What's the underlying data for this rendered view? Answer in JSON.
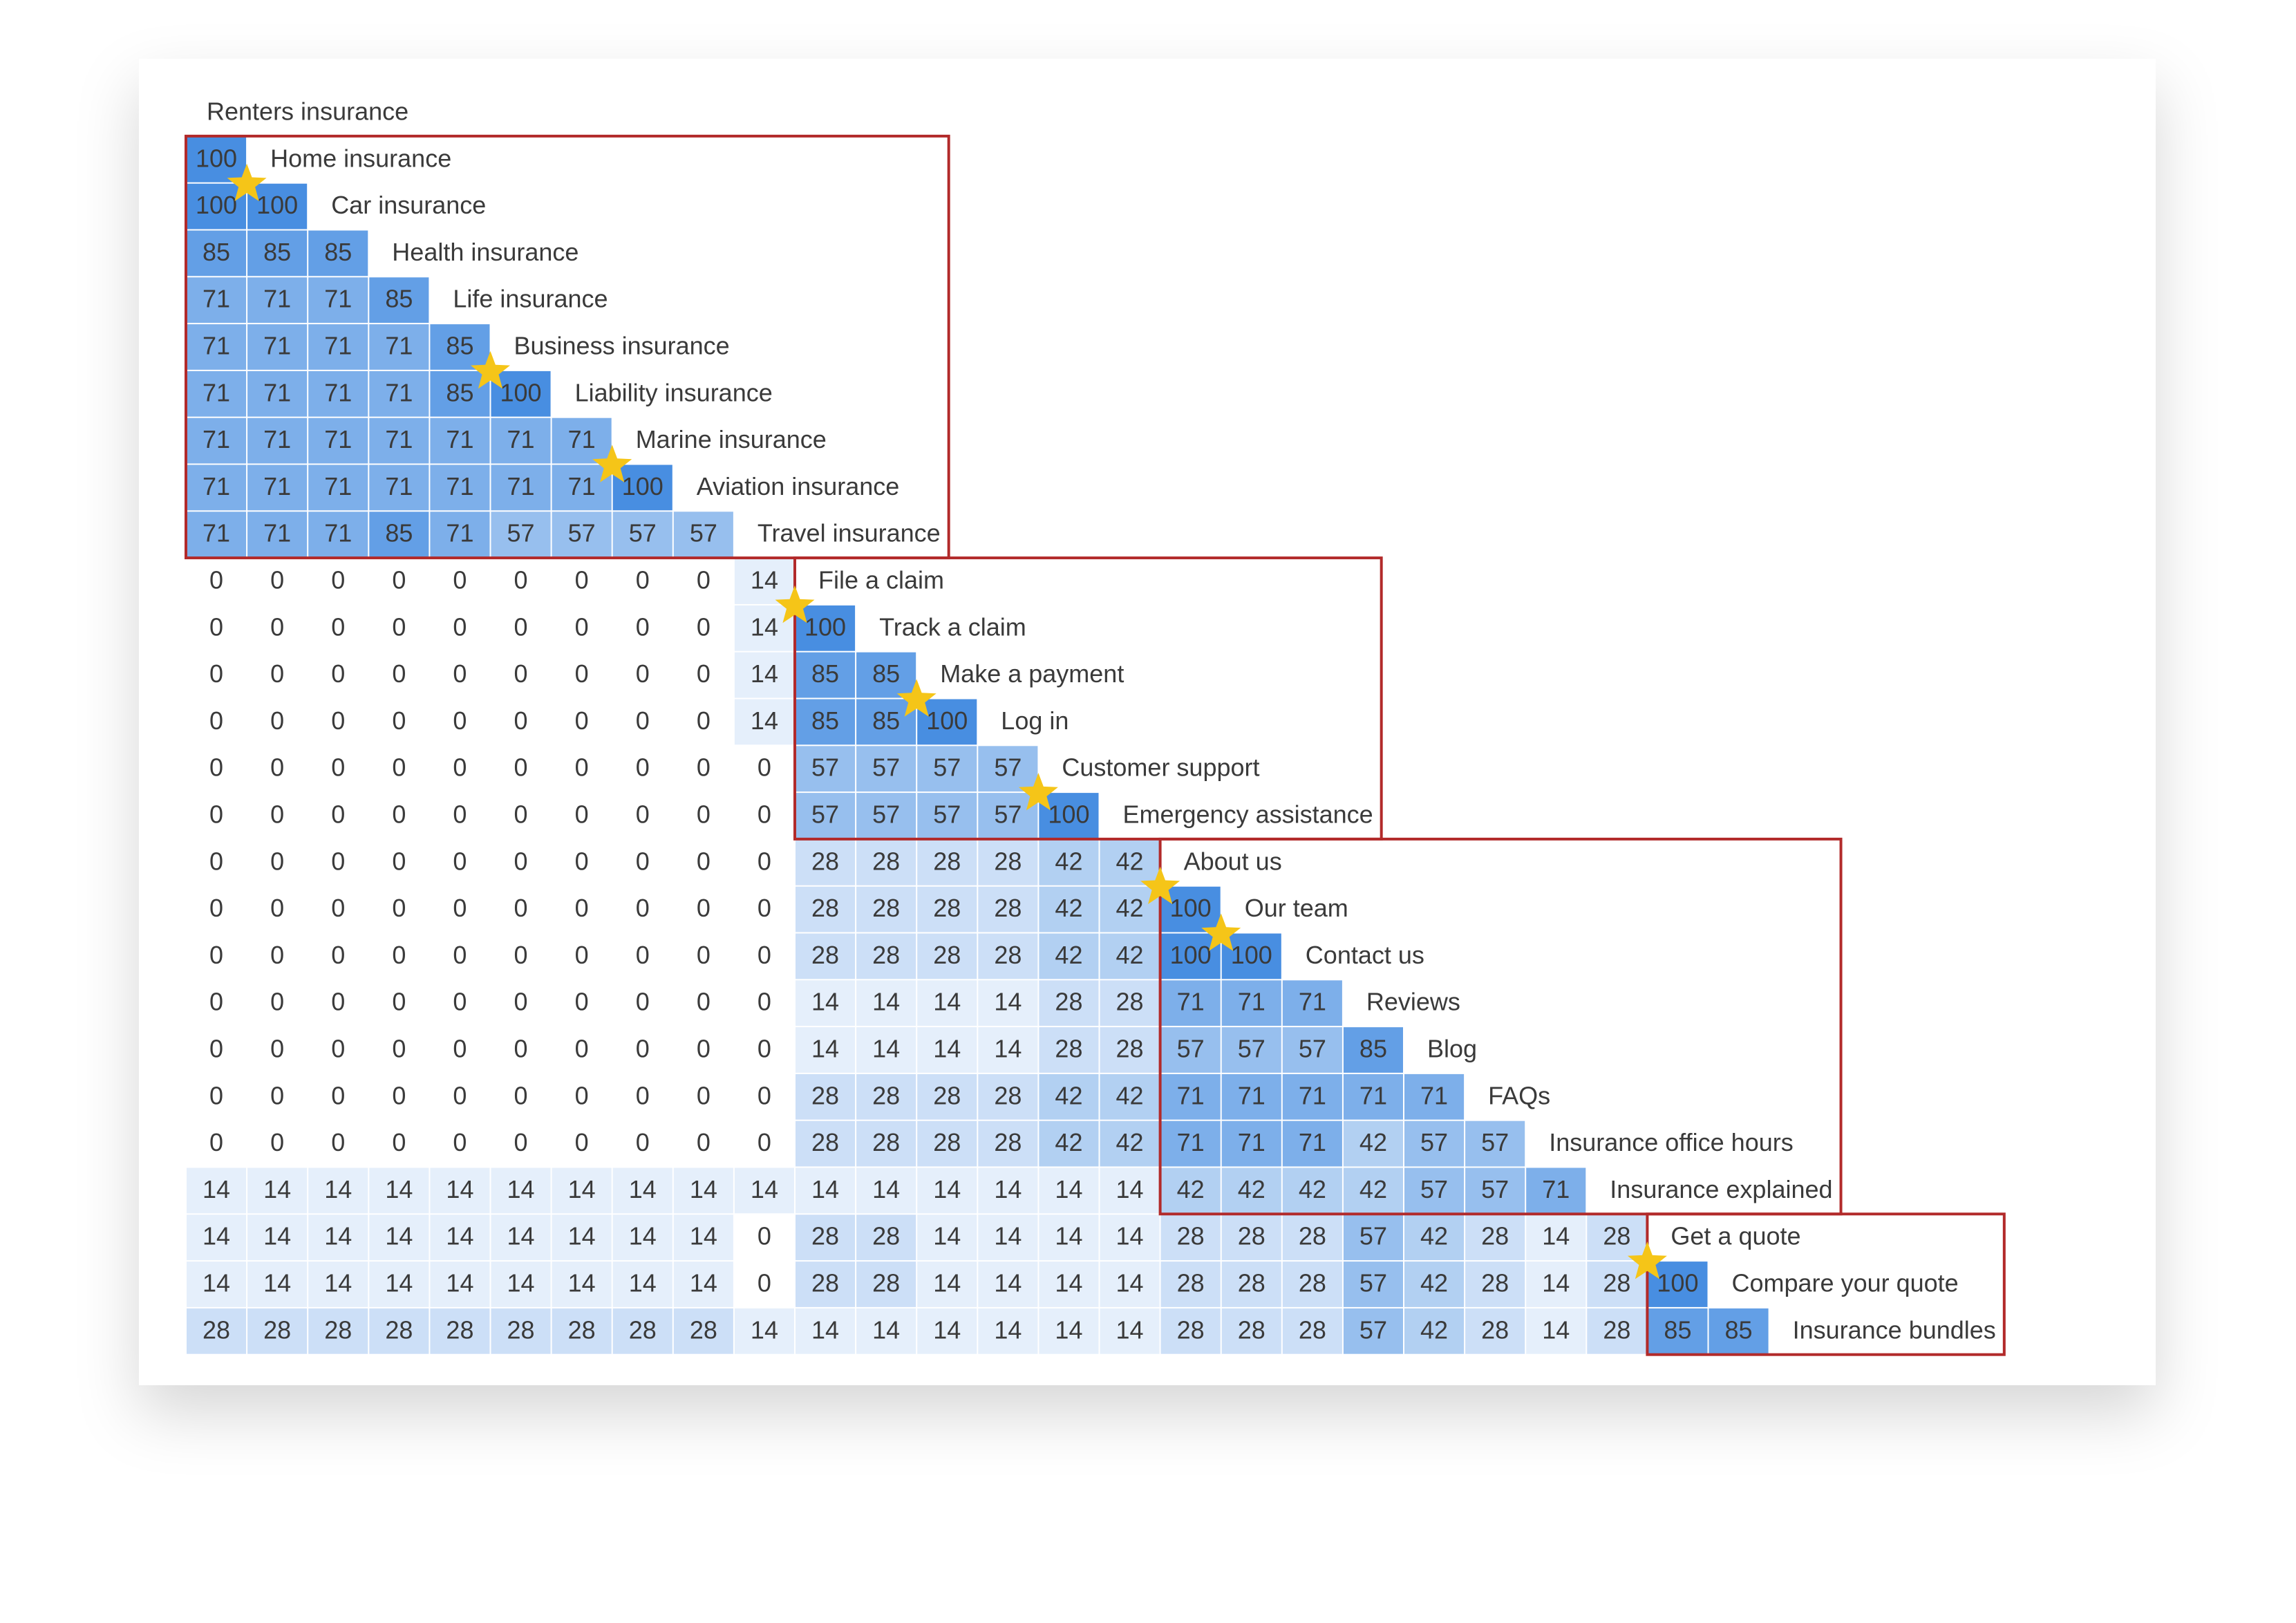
{
  "matrix": {
    "items": [
      {
        "label": "Renters insurance"
      },
      {
        "label": "Home insurance",
        "scores": [
          100
        ]
      },
      {
        "label": "Car insurance",
        "scores": [
          100,
          100
        ]
      },
      {
        "label": "Health insurance",
        "scores": [
          85,
          85,
          85
        ]
      },
      {
        "label": "Life insurance",
        "scores": [
          71,
          71,
          71,
          85
        ]
      },
      {
        "label": "Business insurance",
        "scores": [
          71,
          71,
          71,
          71,
          85
        ]
      },
      {
        "label": "Liability insurance",
        "scores": [
          71,
          71,
          71,
          71,
          85,
          100
        ]
      },
      {
        "label": "Marine insurance",
        "scores": [
          71,
          71,
          71,
          71,
          71,
          71,
          71
        ]
      },
      {
        "label": "Aviation insurance",
        "scores": [
          71,
          71,
          71,
          71,
          71,
          71,
          71,
          100
        ]
      },
      {
        "label": "Travel insurance",
        "scores": [
          71,
          71,
          71,
          85,
          71,
          57,
          57,
          57,
          57
        ]
      },
      {
        "label": "File a claim",
        "scores": [
          0,
          0,
          0,
          0,
          0,
          0,
          0,
          0,
          0,
          14
        ]
      },
      {
        "label": "Track a claim",
        "scores": [
          0,
          0,
          0,
          0,
          0,
          0,
          0,
          0,
          0,
          14,
          100
        ]
      },
      {
        "label": "Make a payment",
        "scores": [
          0,
          0,
          0,
          0,
          0,
          0,
          0,
          0,
          0,
          14,
          85,
          85
        ]
      },
      {
        "label": "Log in",
        "scores": [
          0,
          0,
          0,
          0,
          0,
          0,
          0,
          0,
          0,
          14,
          85,
          85,
          100
        ]
      },
      {
        "label": "Customer support",
        "scores": [
          0,
          0,
          0,
          0,
          0,
          0,
          0,
          0,
          0,
          0,
          57,
          57,
          57,
          57
        ]
      },
      {
        "label": "Emergency assistance",
        "scores": [
          0,
          0,
          0,
          0,
          0,
          0,
          0,
          0,
          0,
          0,
          57,
          57,
          57,
          57,
          100
        ]
      },
      {
        "label": "About us",
        "scores": [
          0,
          0,
          0,
          0,
          0,
          0,
          0,
          0,
          0,
          0,
          28,
          28,
          28,
          28,
          42,
          42
        ]
      },
      {
        "label": "Our team",
        "scores": [
          0,
          0,
          0,
          0,
          0,
          0,
          0,
          0,
          0,
          0,
          28,
          28,
          28,
          28,
          42,
          42,
          100
        ]
      },
      {
        "label": "Contact us",
        "scores": [
          0,
          0,
          0,
          0,
          0,
          0,
          0,
          0,
          0,
          0,
          28,
          28,
          28,
          28,
          42,
          42,
          100,
          100
        ]
      },
      {
        "label": "Reviews",
        "scores": [
          0,
          0,
          0,
          0,
          0,
          0,
          0,
          0,
          0,
          0,
          14,
          14,
          14,
          14,
          28,
          28,
          71,
          71,
          71
        ]
      },
      {
        "label": "Blog",
        "scores": [
          0,
          0,
          0,
          0,
          0,
          0,
          0,
          0,
          0,
          0,
          14,
          14,
          14,
          14,
          28,
          28,
          57,
          57,
          57,
          85
        ]
      },
      {
        "label": "FAQs",
        "scores": [
          0,
          0,
          0,
          0,
          0,
          0,
          0,
          0,
          0,
          0,
          28,
          28,
          28,
          28,
          42,
          42,
          71,
          71,
          71,
          71,
          71
        ]
      },
      {
        "label": "Insurance office hours",
        "scores": [
          0,
          0,
          0,
          0,
          0,
          0,
          0,
          0,
          0,
          0,
          28,
          28,
          28,
          28,
          42,
          42,
          71,
          71,
          71,
          42,
          57,
          57
        ]
      },
      {
        "label": "Insurance explained",
        "scores": [
          14,
          14,
          14,
          14,
          14,
          14,
          14,
          14,
          14,
          14,
          14,
          14,
          14,
          14,
          14,
          14,
          42,
          42,
          42,
          42,
          57,
          57,
          71
        ]
      },
      {
        "label": "Get a quote",
        "scores": [
          14,
          14,
          14,
          14,
          14,
          14,
          14,
          14,
          14,
          0,
          28,
          28,
          14,
          14,
          14,
          14,
          28,
          28,
          28,
          57,
          42,
          28,
          14,
          28
        ]
      },
      {
        "label": "Compare your quote",
        "scores": [
          14,
          14,
          14,
          14,
          14,
          14,
          14,
          14,
          14,
          0,
          28,
          28,
          14,
          14,
          14,
          14,
          28,
          28,
          28,
          57,
          42,
          28,
          14,
          28,
          100
        ]
      },
      {
        "label": "Insurance bundles",
        "scores": [
          28,
          28,
          28,
          28,
          28,
          28,
          28,
          28,
          28,
          14,
          14,
          14,
          14,
          14,
          14,
          14,
          28,
          28,
          28,
          57,
          42,
          28,
          14,
          28,
          85,
          85
        ]
      }
    ]
  }
}
